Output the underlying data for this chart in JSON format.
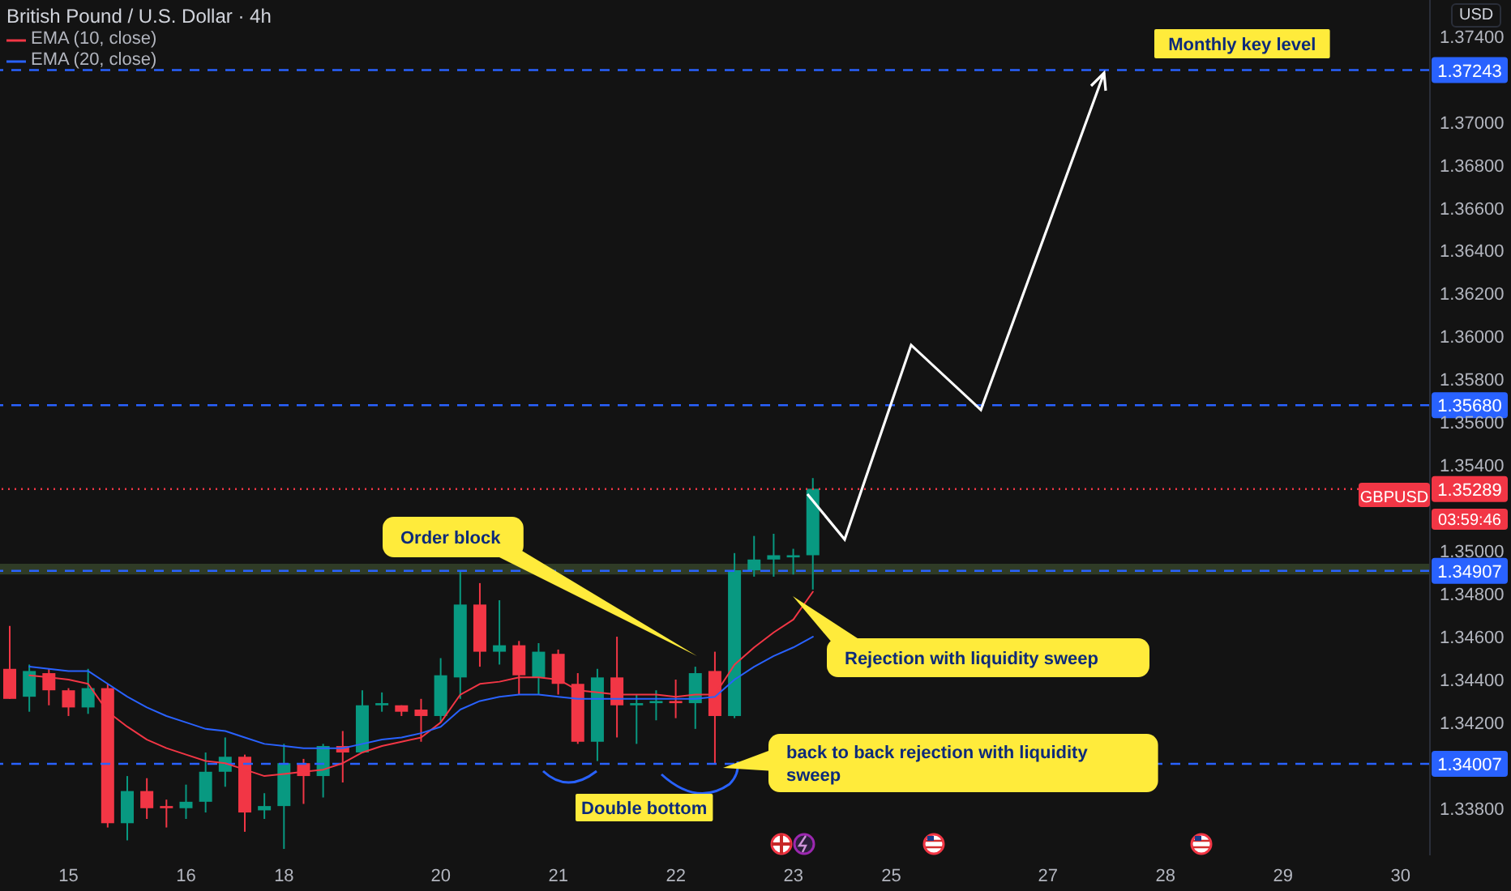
{
  "chart_data": {
    "type": "candlestick",
    "title": "British Pound / U.S. Dollar · 4h",
    "ylabel": "USD",
    "legend": "top left",
    "grid": false,
    "marker": "none",
    "categories": [
      null,
      null,
      null,
      "15",
      null,
      null,
      null,
      null,
      null,
      "16",
      null,
      null,
      null,
      null,
      "18",
      null,
      null,
      null,
      null,
      null,
      null,
      null,
      "20",
      null,
      null,
      null,
      null,
      null,
      "21",
      null,
      null,
      null,
      null,
      null,
      "22",
      null,
      null,
      null,
      null,
      null,
      "23",
      null,
      null,
      null,
      null,
      "25",
      null,
      null,
      null,
      null,
      null,
      null,
      null,
      "27",
      null,
      null,
      null,
      null,
      null,
      "28",
      null,
      null,
      null,
      null,
      null,
      "29",
      null,
      null,
      null,
      null,
      null,
      "30",
      null
    ],
    "ohlc": [
      [
        1.3445,
        1.3465,
        1.3431,
        1.3431
      ],
      [
        1.3432,
        1.3447,
        1.3425,
        1.3444
      ],
      [
        1.3443,
        1.3445,
        1.3428,
        1.3435
      ],
      [
        1.3435,
        1.3436,
        1.3423,
        1.3427
      ],
      [
        1.3427,
        1.3445,
        1.3424,
        1.3436
      ],
      [
        1.3436,
        1.3438,
        1.3371,
        1.3373
      ],
      [
        1.3373,
        1.3395,
        1.3365,
        1.3388
      ],
      [
        1.3388,
        1.3394,
        1.3375,
        1.338
      ],
      [
        1.3381,
        1.3384,
        1.3371,
        1.338
      ],
      [
        1.338,
        1.3391,
        1.3375,
        1.3383
      ],
      [
        1.3383,
        1.3406,
        1.3378,
        1.3397
      ],
      [
        1.3397,
        1.3413,
        1.339,
        1.3404
      ],
      [
        1.3404,
        1.3405,
        1.3369,
        1.3378
      ],
      [
        1.3379,
        1.3387,
        1.3375,
        1.3381
      ],
      [
        1.3381,
        1.341,
        1.3361,
        1.3401
      ],
      [
        1.3401,
        1.3403,
        1.3382,
        1.3395
      ],
      [
        1.3395,
        1.341,
        1.3385,
        1.3409
      ],
      [
        1.3409,
        1.3416,
        1.3392,
        1.3406
      ],
      [
        1.3406,
        1.3435,
        1.3406,
        1.3428
      ],
      [
        1.3428,
        1.3434,
        1.3425,
        1.3429
      ],
      [
        1.3428,
        1.3428,
        1.3423,
        1.3425
      ],
      [
        1.3426,
        1.3431,
        1.3411,
        1.3423
      ],
      [
        1.3423,
        1.345,
        1.342,
        1.3442
      ],
      [
        1.3441,
        1.3491,
        1.3431,
        1.3475
      ],
      [
        1.3475,
        1.3485,
        1.3446,
        1.3453
      ],
      [
        1.3453,
        1.3477,
        1.3447,
        1.3456
      ],
      [
        1.3456,
        1.3458,
        1.3433,
        1.3442
      ],
      [
        1.3441,
        1.3457,
        1.3433,
        1.3453
      ],
      [
        1.3452,
        1.3454,
        1.3433,
        1.3438
      ],
      [
        1.3438,
        1.3443,
        1.341,
        1.3411
      ],
      [
        1.3411,
        1.3445,
        1.3402,
        1.3441
      ],
      [
        1.3441,
        1.346,
        1.3413,
        1.3428
      ],
      [
        1.3428,
        1.3433,
        1.341,
        1.3429
      ],
      [
        1.3429,
        1.3435,
        1.3421,
        1.343
      ],
      [
        1.343,
        1.344,
        1.3422,
        1.3429
      ],
      [
        1.3429,
        1.3446,
        1.3417,
        1.3443
      ],
      [
        1.3444,
        1.3453,
        1.3401,
        1.3423
      ],
      [
        1.3423,
        1.3499,
        1.3422,
        1.3491
      ],
      [
        1.3491,
        1.3507,
        1.3488,
        1.3496
      ],
      [
        1.3496,
        1.3508,
        1.3488,
        1.3498
      ],
      [
        1.3497,
        1.3501,
        1.3489,
        1.3498
      ],
      [
        1.3498,
        1.3534,
        1.3482,
        1.3529
      ],
      null,
      null,
      null,
      null,
      null,
      null,
      null,
      null,
      null,
      null,
      null,
      null,
      null,
      null,
      null,
      null,
      null,
      null,
      null,
      null,
      null,
      null,
      null,
      null,
      null,
      null,
      null,
      null,
      null,
      null,
      null
    ],
    "series": [
      {
        "name": "EMA (10, close)",
        "type": "line",
        "color": "#f23645",
        "values": [
          null,
          1.3442,
          1.3441,
          1.344,
          1.3438,
          1.3425,
          1.3418,
          1.3412,
          1.3408,
          1.3405,
          1.3402,
          1.3401,
          1.3398,
          1.3395,
          1.3396,
          1.3397,
          1.3398,
          1.3401,
          1.3406,
          1.3409,
          1.3411,
          1.3413,
          1.342,
          1.3433,
          1.3438,
          1.3439,
          1.3441,
          1.3441,
          1.344,
          1.3435,
          1.3434,
          1.3433,
          1.3433,
          1.3433,
          1.3432,
          1.3433,
          1.3433,
          1.3447,
          1.3455,
          1.3462,
          1.3468,
          1.3481,
          null,
          null,
          null,
          null,
          null,
          null,
          null,
          null,
          null,
          null,
          null,
          null,
          null,
          null,
          null,
          null,
          null,
          null,
          null,
          null,
          null,
          null,
          null,
          null,
          null,
          null,
          null,
          null,
          null,
          null,
          null
        ]
      },
      {
        "name": "EMA (20, close)",
        "type": "line",
        "color": "#2962ff",
        "values": [
          null,
          1.3446,
          1.3445,
          1.3444,
          1.3444,
          1.3438,
          1.3432,
          1.3427,
          1.3423,
          1.342,
          1.3417,
          1.3416,
          1.3413,
          1.341,
          1.3409,
          1.3408,
          1.3408,
          1.3408,
          1.341,
          1.3412,
          1.3413,
          1.3415,
          1.3418,
          1.3426,
          1.343,
          1.3432,
          1.3433,
          1.3433,
          1.3432,
          1.3431,
          1.3431,
          1.3431,
          1.3431,
          1.3431,
          1.3431,
          1.3431,
          1.3432,
          1.344,
          1.3446,
          1.3451,
          1.3455,
          1.346,
          null,
          null,
          null,
          null,
          null,
          null,
          null,
          null,
          null,
          null,
          null,
          null,
          null,
          null,
          null,
          null,
          null,
          null,
          null,
          null,
          null,
          null,
          null,
          null,
          null,
          null,
          null,
          null,
          null,
          null,
          null
        ]
      }
    ],
    "ylim": [
      1.3358,
      1.3757
    ],
    "yticks": [
      {
        "value": 1.338,
        "label": "1.33800"
      },
      {
        "value": 1.342,
        "label": "1.34200"
      },
      {
        "value": 1.344,
        "label": "1.34400"
      },
      {
        "value": 1.346,
        "label": "1.34600"
      },
      {
        "value": 1.348,
        "label": "1.34800"
      },
      {
        "value": 1.35,
        "label": "1.35000"
      },
      {
        "value": 1.354,
        "label": "1.35400"
      },
      {
        "value": 1.356,
        "label": "1.35600"
      },
      {
        "value": 1.358,
        "label": "1.35800"
      },
      {
        "value": 1.36,
        "label": "1.36000"
      },
      {
        "value": 1.362,
        "label": "1.36200"
      },
      {
        "value": 1.364,
        "label": "1.36400"
      },
      {
        "value": 1.366,
        "label": "1.36600"
      },
      {
        "value": 1.368,
        "label": "1.36800"
      },
      {
        "value": 1.37,
        "label": "1.37000"
      },
      {
        "value": 1.374,
        "label": "1.37400"
      }
    ],
    "ref_lines": [
      {
        "axis": "y",
        "value": 1.37243,
        "label": "1.37243",
        "color": "#2962ff",
        "line_style": "dashed"
      },
      {
        "axis": "y",
        "value": 1.3568,
        "label": "1.35680",
        "color": "#2962ff",
        "line_style": "dashed"
      },
      {
        "axis": "y",
        "value": 1.34907,
        "label": "1.34907",
        "color": "#2962ff",
        "line_style": "dashed"
      },
      {
        "axis": "y",
        "value": 1.34007,
        "label": "1.34007",
        "color": "#2962ff",
        "line_style": "dashed"
      },
      {
        "axis": "y",
        "value": 1.35289,
        "label": "1.35289",
        "color": "#f23645",
        "line_style": "dotted"
      }
    ],
    "bands": [
      {
        "axis": "y",
        "from": 1.3489,
        "to": 1.3494,
        "color": "#2f3b26"
      }
    ],
    "annotations": [
      "Monthly key level",
      "Order block",
      "Rejection with liquidity sweep",
      "back to back rejection with liquidity sweep",
      "Double bottom",
      "GBPUSD",
      "03:59:46"
    ]
  }
}
